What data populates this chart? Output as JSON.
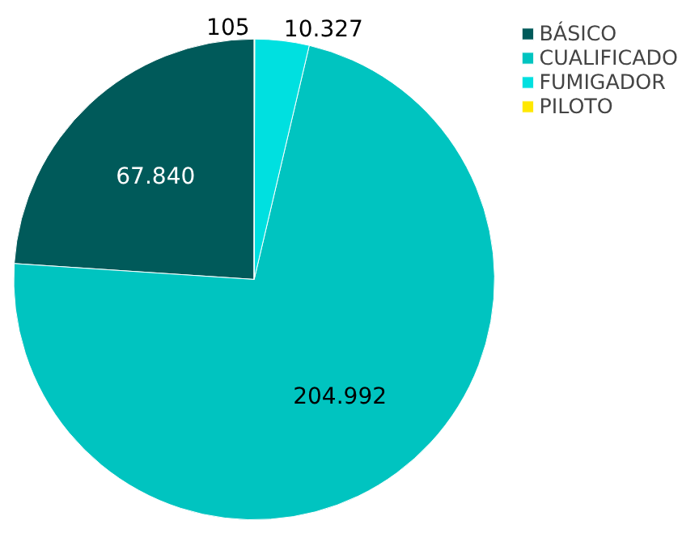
{
  "chart_data": {
    "type": "pie",
    "categories": [
      "BÁSICO",
      "CUALIFICADO",
      "FUMIGADOR",
      "PILOTO"
    ],
    "values": [
      67840,
      204992,
      10327,
      105
    ],
    "colors": [
      "#005a5a",
      "#00c4c0",
      "#00e0e0",
      "#ffe800"
    ],
    "value_labels": [
      "67.840",
      "204.992",
      "10.327",
      "105"
    ],
    "legend": "top right"
  }
}
